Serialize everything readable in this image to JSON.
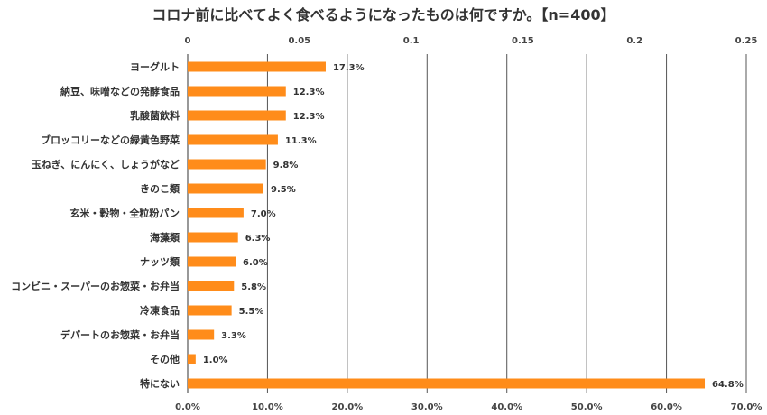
{
  "chart_data": {
    "type": "bar",
    "orientation": "horizontal",
    "title": "コロナ前に比べてよく食べるようになったものは何ですか。【n=400】",
    "categories": [
      "ヨーグルト",
      "納豆、味噌などの発酵食品",
      "乳酸菌飲料",
      "ブロッコリーなどの緑黄色野菜",
      "玉ねぎ、にんにく、しょうがなど",
      "きのこ類",
      "玄米・穀物・全粒粉パン",
      "海藻類",
      "ナッツ類",
      "コンビニ・スーパーのお惣菜・お弁当",
      "冷凍食品",
      "デパートのお惣菜・お弁当",
      "その他",
      "特にない"
    ],
    "values": [
      17.3,
      12.3,
      12.3,
      11.3,
      9.8,
      9.5,
      7.0,
      6.3,
      6.0,
      5.8,
      5.5,
      3.3,
      1.0,
      64.8
    ],
    "value_labels": [
      "17.3%",
      "12.3%",
      "12.3%",
      "11.3%",
      "9.8%",
      "9.5%",
      "7.0%",
      "6.3%",
      "6.0%",
      "5.8%",
      "5.5%",
      "3.3%",
      "1.0%",
      "64.8%"
    ],
    "xlim": [
      0,
      70
    ],
    "bottom_ticks": [
      "0.0%",
      "10.0%",
      "20.0%",
      "30.0%",
      "40.0%",
      "50.0%",
      "60.0%",
      "70.0%"
    ],
    "top_axis": {
      "range": [
        0,
        0.25
      ],
      "ticks": [
        "0",
        "0.05",
        "0.1",
        "0.15",
        "0.2",
        "0.25"
      ]
    },
    "grid": true,
    "bar_color": "#FF8C1A",
    "grid_color": "#555555"
  }
}
